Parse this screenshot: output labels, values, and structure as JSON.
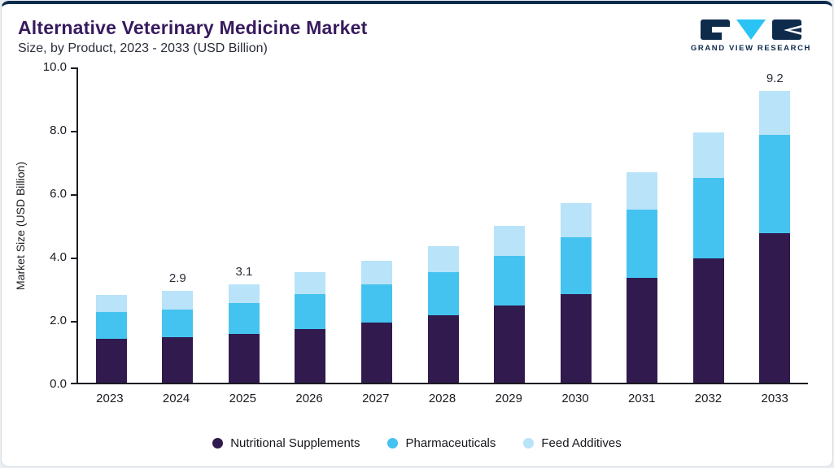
{
  "header": {
    "title": "Alternative Veterinary Medicine Market",
    "subtitle": "Size, by Product, 2023 - 2033 (USD Billion)",
    "logo_text": "GRAND VIEW RESEARCH"
  },
  "colors": {
    "accent_navy": "#0e2b4c",
    "title_purple": "#371a5e",
    "axis": "#1b1b22",
    "logo_cyan": "#29c4f3"
  },
  "chart_data": {
    "type": "bar",
    "stacked": true,
    "title": "Alternative Veterinary Medicine Market Size, by Product, 2023 - 2033 (USD Billion)",
    "xlabel": "",
    "ylabel": "Market Size (USD Billion)",
    "ylim": [
      0,
      10
    ],
    "grid": false,
    "legend_position": "bottom",
    "yticks": [
      "10.0",
      "8.0",
      "6.0",
      "4.0",
      "2.0",
      "0.0"
    ],
    "categories": [
      "2023",
      "2024",
      "2025",
      "2026",
      "2027",
      "2028",
      "2029",
      "2030",
      "2031",
      "2032",
      "2033"
    ],
    "series": [
      {
        "name": "Nutritional Supplements",
        "color": "#301a4e",
        "values": [
          1.38,
          1.45,
          1.55,
          1.7,
          1.9,
          2.12,
          2.44,
          2.8,
          3.32,
          3.93,
          4.72
        ]
      },
      {
        "name": "Pharmaceuticals",
        "color": "#45c3f0",
        "values": [
          0.84,
          0.87,
          0.96,
          1.1,
          1.21,
          1.36,
          1.57,
          1.8,
          2.13,
          2.52,
          3.1
        ]
      },
      {
        "name": "Feed Additives",
        "color": "#b8e3f8",
        "values": [
          0.55,
          0.58,
          0.59,
          0.7,
          0.74,
          0.82,
          0.94,
          1.08,
          1.2,
          1.45,
          1.38
        ]
      }
    ],
    "bar_labels": [
      "",
      "2.9",
      "3.1",
      "",
      "",
      "",
      "",
      "",
      "",
      "",
      "9.2"
    ]
  }
}
